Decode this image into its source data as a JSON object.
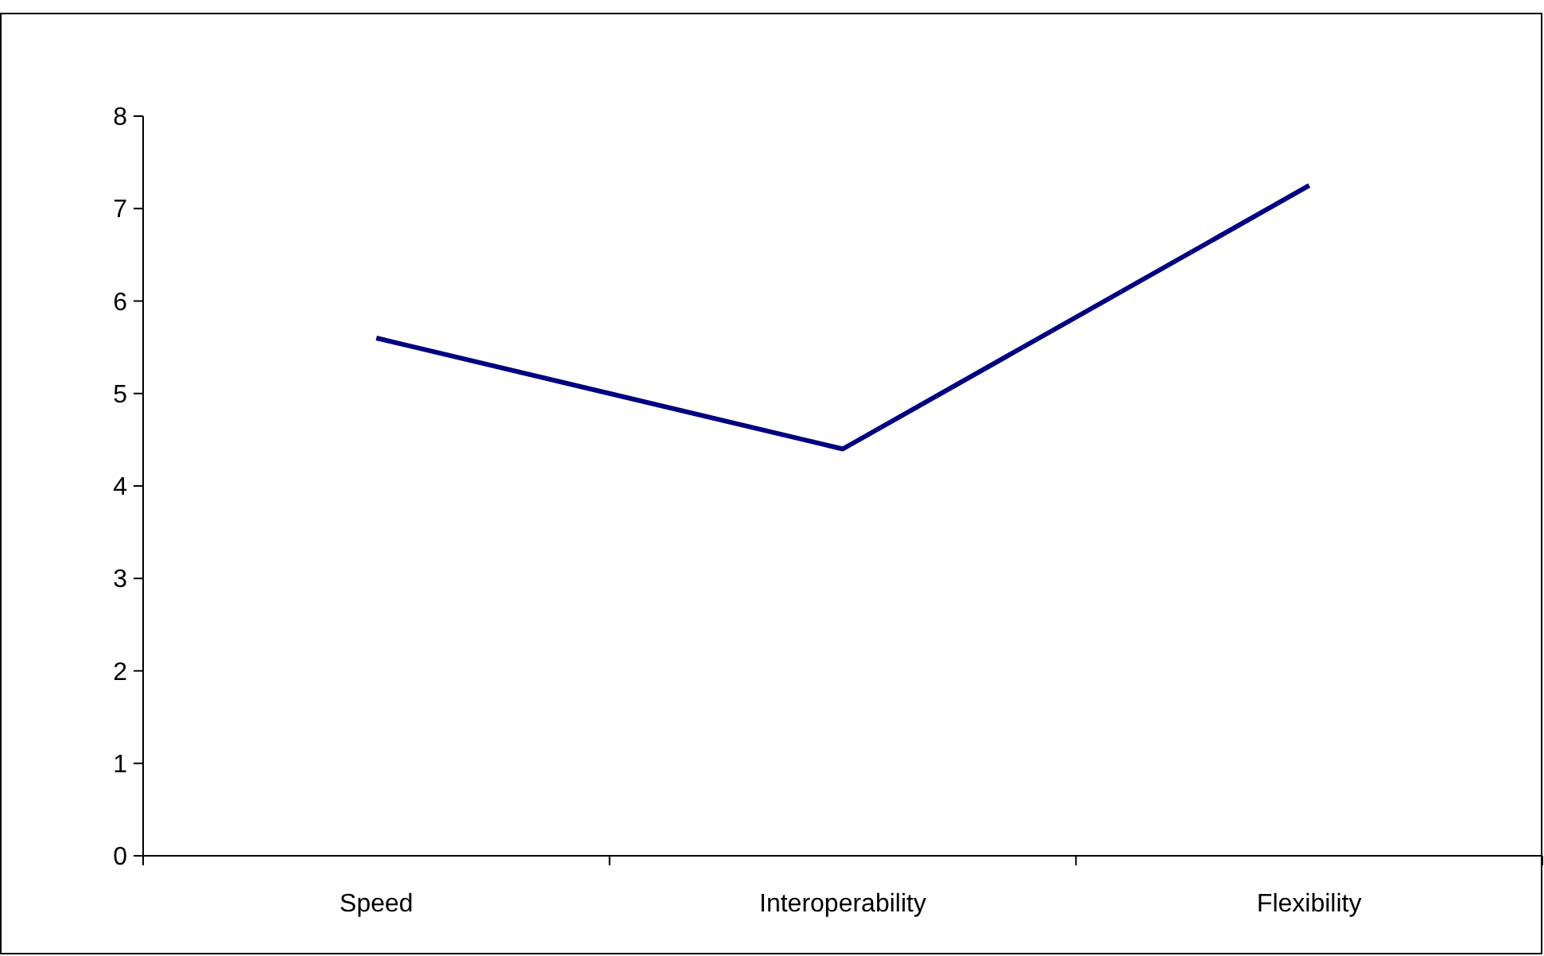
{
  "chart_data": {
    "type": "line",
    "categories": [
      "Speed",
      "Interoperability",
      "Flexibility"
    ],
    "series": [
      {
        "color": "#000080",
        "values": [
          5.6,
          4.4,
          7.25
        ]
      }
    ],
    "ylim": [
      0,
      8
    ],
    "yticks": [
      0,
      1,
      2,
      3,
      4,
      5,
      6,
      7,
      8
    ],
    "grid": false,
    "marker": "none",
    "line_style": "solid"
  }
}
